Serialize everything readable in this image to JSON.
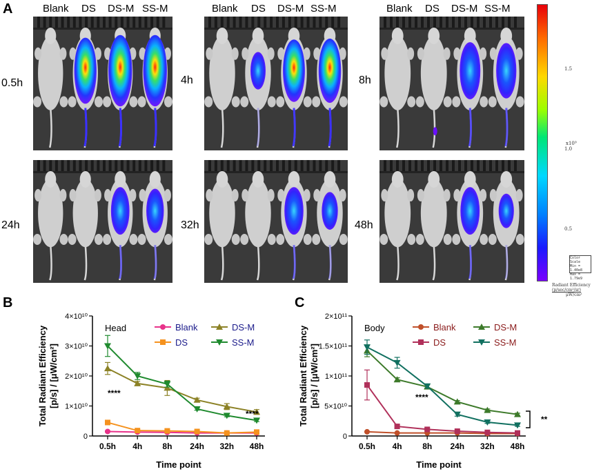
{
  "panel_labels": {
    "a": "A",
    "b": "B",
    "c": "C"
  },
  "panel_a": {
    "column_labels": [
      "Blank",
      "DS",
      "DS-M",
      "SS-M"
    ],
    "time_points": [
      "0.5h",
      "4h",
      "8h",
      "24h",
      "32h",
      "48h"
    ],
    "colorbar": {
      "ticks": [
        "1.5",
        "1.0",
        "0.5"
      ],
      "exponent": "x10⁹",
      "scale_box": [
        "Color Scale",
        "Min = 1.40e8",
        "Max = 1.79e9"
      ],
      "caption": [
        "Radiant Efficiency",
        "(p/sec/cm²/sr)",
        "μW/cm²"
      ]
    },
    "colors": {
      "background": "#3a3a3a",
      "mouse": "#cfcfcf"
    }
  },
  "chart_data": [
    {
      "type": "line",
      "panel": "B",
      "annotation": "Head",
      "xlabel": "Time point",
      "ylabel_line1": "Total Radiant Efficiency",
      "ylabel_line2": "[p/s] / [μW/cm²]",
      "categories": [
        "0.5h",
        "4h",
        "8h",
        "24h",
        "32h",
        "48h"
      ],
      "yticks": [
        "0",
        "1×10¹⁰",
        "2×10¹⁰",
        "3×10¹⁰",
        "4×10¹⁰"
      ],
      "ylim": [
        0,
        4
      ],
      "unit_multiplier": "1e10",
      "series": [
        {
          "name": "Blank",
          "color": "#e8338a",
          "marker": "circle",
          "values": [
            0.15,
            0.13,
            0.12,
            0.1,
            0.1,
            0.1
          ],
          "errors": [
            0.02,
            0.02,
            0.02,
            0.02,
            0.02,
            0.02
          ]
        },
        {
          "name": "DS",
          "color": "#f5921e",
          "marker": "square",
          "values": [
            0.45,
            0.18,
            0.17,
            0.15,
            0.1,
            0.13
          ],
          "errors": [
            0.04,
            0.03,
            0.02,
            0.02,
            0.02,
            0.02
          ]
        },
        {
          "name": "DS-M",
          "color": "#8c8226",
          "marker": "triangle-up",
          "values": [
            2.25,
            1.75,
            1.6,
            1.2,
            0.98,
            0.8
          ],
          "errors": [
            0.2,
            0.07,
            0.25,
            0.06,
            0.1,
            0.08
          ]
        },
        {
          "name": "SS-M",
          "color": "#1f8a2e",
          "marker": "triangle-down",
          "values": [
            3.0,
            2.0,
            1.73,
            0.9,
            0.68,
            0.52
          ],
          "errors": [
            0.35,
            0.12,
            0.1,
            0.04,
            0.04,
            0.04
          ]
        }
      ],
      "significance": [
        {
          "label": "****",
          "near": "0.5h"
        },
        {
          "label": "****",
          "near": "48h"
        }
      ]
    },
    {
      "type": "line",
      "panel": "C",
      "annotation": "Body",
      "xlabel": "Time point",
      "ylabel_line1": "Total Radiant Efficiency",
      "ylabel_line2": "[p/s] / [μW/cm²]",
      "categories": [
        "0.5h",
        "4h",
        "8h",
        "24h",
        "32h",
        "48h"
      ],
      "yticks": [
        "0",
        "5×10¹⁰",
        "1×10¹¹",
        "1.5×10¹¹",
        "2×10¹¹"
      ],
      "ylim": [
        0,
        20
      ],
      "unit_multiplier": "1e10",
      "series": [
        {
          "name": "Blank",
          "color": "#c0502a",
          "marker": "circle",
          "values": [
            0.7,
            0.5,
            0.5,
            0.5,
            0.4,
            0.4
          ],
          "errors": [
            0.05,
            0.05,
            0.05,
            0.05,
            0.05,
            0.05
          ]
        },
        {
          "name": "DS",
          "color": "#b0305a",
          "marker": "square",
          "values": [
            8.5,
            1.6,
            1.1,
            0.8,
            0.6,
            0.5
          ],
          "errors": [
            2.5,
            0.3,
            0.2,
            0.1,
            0.1,
            0.1
          ]
        },
        {
          "name": "DS-M",
          "color": "#3d7a2a",
          "marker": "triangle-up",
          "values": [
            14.2,
            9.4,
            8.2,
            5.7,
            4.3,
            3.6
          ],
          "errors": [
            1.0,
            0.3,
            0.3,
            0.2,
            0.2,
            0.2
          ]
        },
        {
          "name": "SS-M",
          "color": "#117060",
          "marker": "triangle-down",
          "values": [
            14.8,
            12.2,
            8.3,
            3.6,
            2.3,
            1.8
          ],
          "errors": [
            1.2,
            0.9,
            0.3,
            0.3,
            0.2,
            0.2
          ]
        }
      ],
      "significance": [
        {
          "label": "****",
          "near": "8h"
        },
        {
          "label": "**",
          "near": "48h"
        }
      ]
    }
  ]
}
